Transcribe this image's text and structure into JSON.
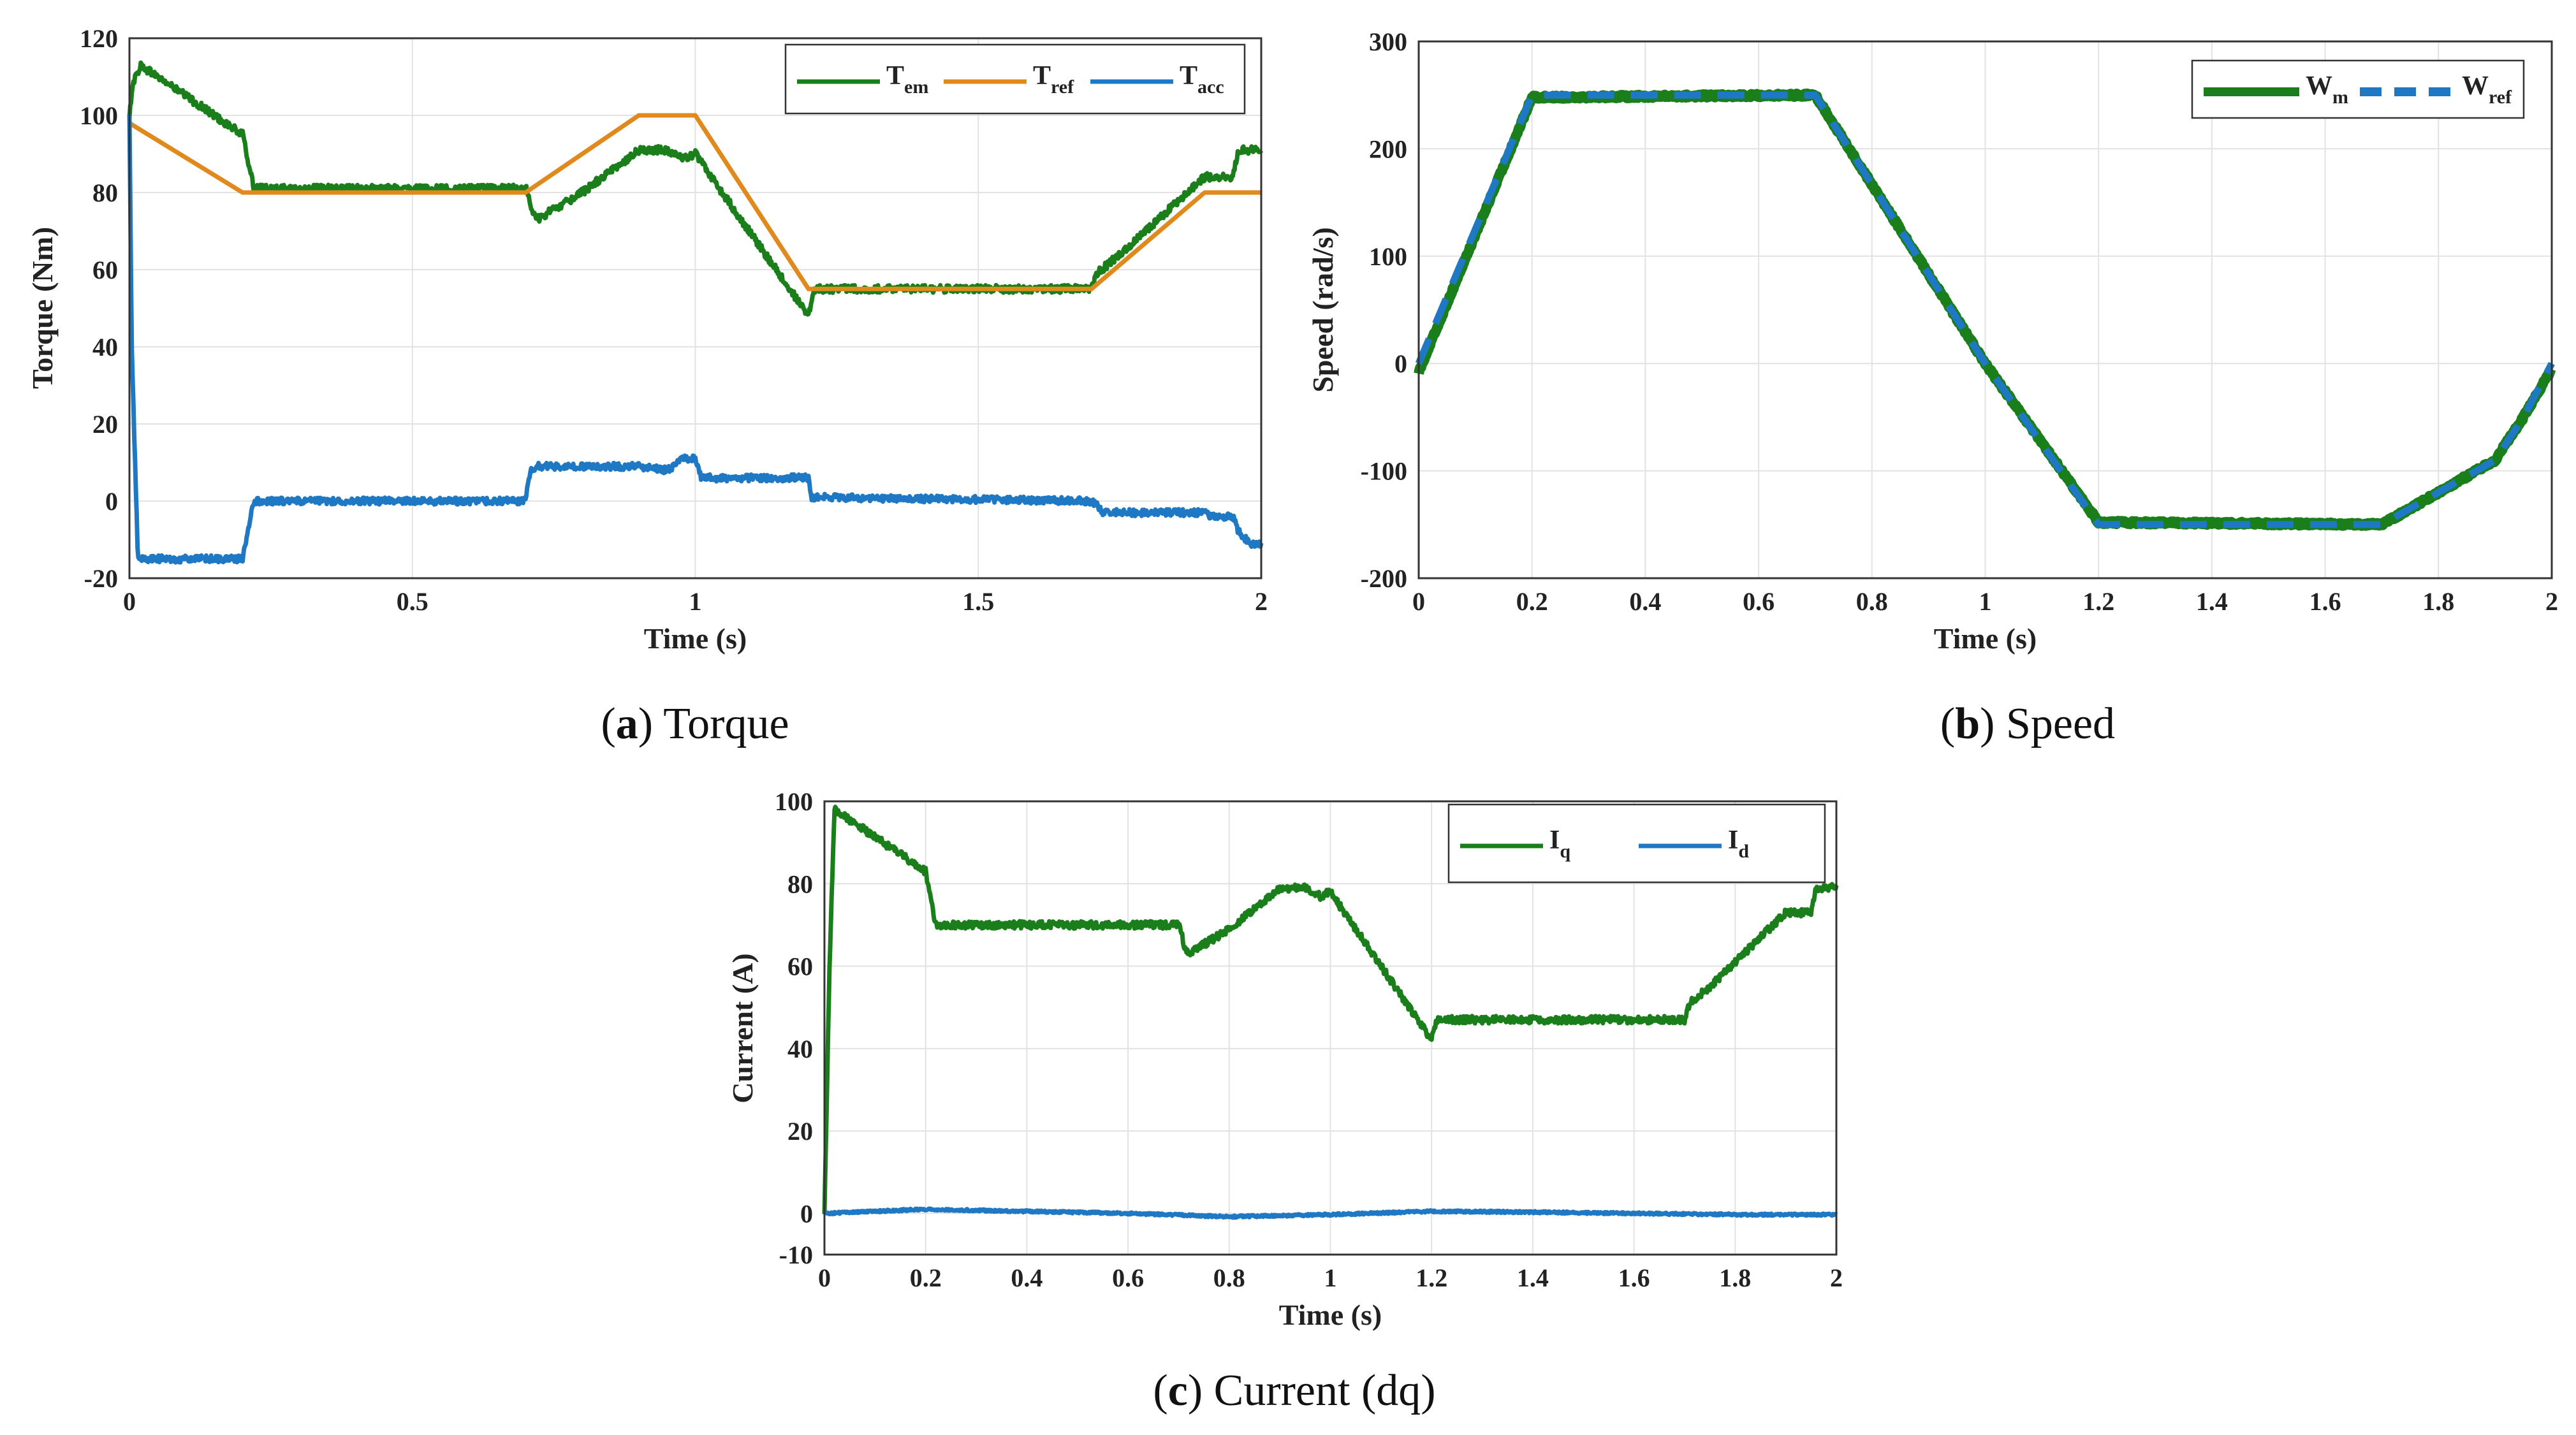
{
  "chart_data": [
    {
      "id": "a",
      "type": "line",
      "caption_letter": "a",
      "caption_text": "Torque",
      "xlabel": "Time (s)",
      "ylabel": "Torque (Nm)",
      "xlim": [
        0,
        2
      ],
      "ylim": [
        -20,
        120
      ],
      "xticks": [
        0,
        0.5,
        1,
        1.5,
        2
      ],
      "xtick_labels": [
        "0",
        "0.5",
        "1",
        "1.5",
        "2"
      ],
      "yticks": [
        -20,
        0,
        20,
        40,
        60,
        80,
        100,
        120
      ],
      "ytick_labels": [
        "-20",
        "0",
        "20",
        "40",
        "60",
        "80",
        "100",
        "120"
      ],
      "grid": true,
      "legend_position": "top-right",
      "series": [
        {
          "name": "T",
          "sub": "em",
          "color": "#1a7f1a",
          "dash": "",
          "noise": 1.0,
          "x": [
            0,
            0.005,
            0.02,
            0.2,
            0.21,
            0.22,
            0.25,
            0.7,
            0.705,
            0.71,
            0.72,
            0.8,
            0.9,
            0.95,
            0.96,
            0.98,
            1.0,
            1.2,
            1.205,
            1.21,
            1.7,
            1.71,
            1.75,
            1.9,
            1.95,
            1.96,
            2.0
          ],
          "y": [
            99,
            108,
            113,
            95,
            88,
            81,
            81,
            81,
            80,
            76,
            73,
            80,
            91,
            91,
            90,
            89,
            90,
            48,
            52,
            55,
            55,
            59,
            64,
            84,
            84,
            91,
            91
          ]
        },
        {
          "name": "T",
          "sub": "ref",
          "color": "#e08a1e",
          "dash": "",
          "noise": 0,
          "x": [
            0,
            0.2,
            0.7,
            0.9,
            1.0,
            1.2,
            1.7,
            1.9,
            2.0
          ],
          "y": [
            98,
            80,
            80,
            100,
            100,
            55,
            55,
            80,
            80
          ]
        },
        {
          "name": "T",
          "sub": "acc",
          "color": "#1f78c4",
          "dash": "",
          "noise": 0.9,
          "x": [
            0,
            0.004,
            0.015,
            0.2,
            0.22,
            0.25,
            0.7,
            0.705,
            0.71,
            0.72,
            0.8,
            0.9,
            0.95,
            0.96,
            0.98,
            1.0,
            1.01,
            1.2,
            1.205,
            1.21,
            1.7,
            1.71,
            1.72,
            1.9,
            1.91,
            1.95,
            1.96,
            1.98,
            2.0
          ],
          "y": [
            100,
            40,
            -15,
            -15,
            0,
            0,
            0,
            5,
            8,
            9,
            9,
            9,
            8,
            9,
            11,
            11,
            6,
            6,
            1,
            1,
            0,
            -1,
            -3,
            -3,
            -4,
            -4,
            -8,
            -11,
            -11
          ]
        }
      ]
    },
    {
      "id": "b",
      "type": "line",
      "caption_letter": "b",
      "caption_text": "Speed",
      "xlabel": "Time (s)",
      "ylabel": "Speed (rad/s)",
      "xlim": [
        0,
        2
      ],
      "ylim": [
        -200,
        300
      ],
      "xticks": [
        0,
        0.2,
        0.4,
        0.6,
        0.8,
        1,
        1.2,
        1.4,
        1.6,
        1.8,
        2
      ],
      "xtick_labels": [
        "0",
        "0.2",
        "0.4",
        "0.6",
        "0.8",
        "1",
        "1.2",
        "1.4",
        "1.6",
        "1.8",
        "2"
      ],
      "yticks": [
        -200,
        -100,
        0,
        100,
        200,
        300
      ],
      "ytick_labels": [
        "-200",
        "-100",
        "0",
        "100",
        "200",
        "300"
      ],
      "grid": true,
      "legend_position": "top-right",
      "series": [
        {
          "name": "W",
          "sub": "m",
          "color": "#1a7f1a",
          "dash": "",
          "noise": 1.5,
          "x": [
            0,
            0.2,
            0.7,
            1.0,
            1.2,
            1.7,
            1.9,
            1.95,
            2.0
          ],
          "y": [
            -8,
            248,
            250,
            0,
            -148,
            -150,
            -90,
            -50,
            -5
          ]
        },
        {
          "name": "W",
          "sub": "ref",
          "color": "#1f78c4",
          "dash": "42 26",
          "noise": 0,
          "x": [
            0,
            0.2,
            0.7,
            1.0,
            1.2,
            1.7,
            1.9,
            1.95,
            2.0
          ],
          "y": [
            0,
            250,
            250,
            0,
            -150,
            -150,
            -90,
            -50,
            0
          ]
        }
      ]
    },
    {
      "id": "c",
      "type": "line",
      "caption_letter": "c",
      "caption_text": "Current (dq)",
      "xlabel": "Time (s)",
      "ylabel": "Current (A)",
      "xlim": [
        0,
        2
      ],
      "ylim": [
        -10,
        100
      ],
      "xticks": [
        0,
        0.2,
        0.4,
        0.6,
        0.8,
        1,
        1.2,
        1.4,
        1.6,
        1.8,
        2
      ],
      "xtick_labels": [
        "0",
        "0.2",
        "0.4",
        "0.6",
        "0.8",
        "1",
        "1.2",
        "1.4",
        "1.6",
        "1.8",
        "2"
      ],
      "yticks": [
        -10,
        0,
        20,
        40,
        60,
        80,
        100
      ],
      "ytick_labels": [
        "-10",
        "0",
        "20",
        "40",
        "60",
        "80",
        "100"
      ],
      "grid": true,
      "legend_position": "top-right",
      "series": [
        {
          "name": "I",
          "sub": "q",
          "color": "#1a7f1a",
          "dash": "",
          "noise": 0.9,
          "x": [
            0,
            0.01,
            0.02,
            0.2,
            0.21,
            0.22,
            0.25,
            0.7,
            0.705,
            0.71,
            0.72,
            0.8,
            0.9,
            0.95,
            0.96,
            0.98,
            1.0,
            1.2,
            1.205,
            1.21,
            1.7,
            1.71,
            1.75,
            1.9,
            1.95,
            1.96,
            2.0
          ],
          "y": [
            0,
            60,
            98,
            83,
            76,
            70,
            70,
            70,
            69,
            65,
            63,
            69,
            79,
            79,
            78,
            77,
            78,
            42,
            45,
            47,
            47,
            51,
            55,
            73,
            73,
            79,
            79
          ]
        },
        {
          "name": "I",
          "sub": "d",
          "color": "#1f78c4",
          "dash": "",
          "noise": 0.25,
          "x": [
            0,
            0.2,
            0.4,
            0.6,
            0.8,
            1.0,
            1.2,
            1.4,
            1.6,
            1.8,
            2.0
          ],
          "y": [
            0,
            1,
            0.5,
            0,
            -0.8,
            -0.3,
            0.5,
            0.3,
            0,
            -0.3,
            -0.3
          ]
        }
      ]
    }
  ]
}
